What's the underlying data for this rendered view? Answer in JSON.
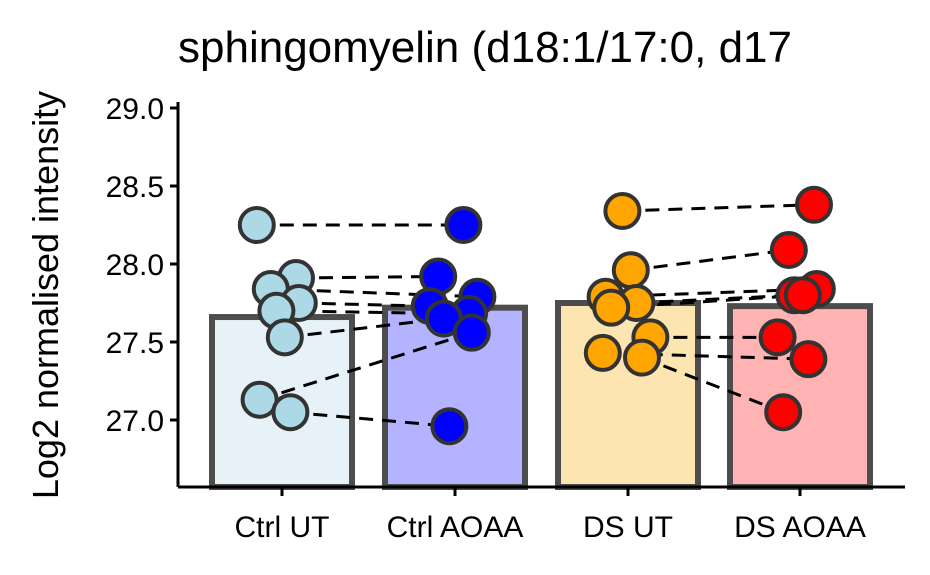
{
  "chart_data": {
    "type": "bar",
    "title": "sphingomyelin (d18:1/17:0, d17",
    "ylabel": "Log2 normalised intensity",
    "xlabel": "",
    "ylim": [
      26.6,
      29.05
    ],
    "yticks": [
      "27.0",
      "27.5",
      "28.0",
      "28.5",
      "29.0"
    ],
    "categories": [
      "Ctrl UT",
      "Ctrl AOAA",
      "DS UT",
      "DS AOAA"
    ],
    "values": [
      27.66,
      27.72,
      27.75,
      27.73
    ],
    "bar_fill_colors": [
      "#e6f2f8",
      "#b3b3ff",
      "#fde5b2",
      "#ffb3b3"
    ],
    "point_colors": [
      "#add8e6",
      "#0000ff",
      "#ffa500",
      "#ff0000"
    ],
    "points": [
      [
        28.25,
        27.91,
        27.84,
        27.75,
        27.7,
        27.53,
        27.13,
        27.05
      ],
      [
        28.25,
        27.92,
        27.79,
        27.73,
        27.68,
        27.65,
        27.56,
        26.96
      ],
      [
        28.34,
        27.96,
        27.79,
        27.75,
        27.72,
        27.53,
        27.43,
        27.4
      ],
      [
        28.38,
        28.09,
        27.84,
        27.8,
        27.8,
        27.53,
        27.39,
        27.05
      ]
    ],
    "pairs": [
      {
        "from_group": 0,
        "to_group": 1,
        "y1": [
          28.25,
          27.91,
          27.84,
          27.75,
          27.7,
          27.53,
          27.13,
          27.05
        ],
        "y2": [
          28.25,
          27.92,
          27.79,
          27.73,
          27.68,
          27.65,
          27.56,
          26.96
        ]
      },
      {
        "from_group": 2,
        "to_group": 3,
        "y1": [
          28.34,
          27.96,
          27.79,
          27.75,
          27.72,
          27.53,
          27.43,
          27.4
        ],
        "y2": [
          28.38,
          28.09,
          27.84,
          27.8,
          27.8,
          27.53,
          27.39,
          27.05
        ]
      }
    ]
  }
}
